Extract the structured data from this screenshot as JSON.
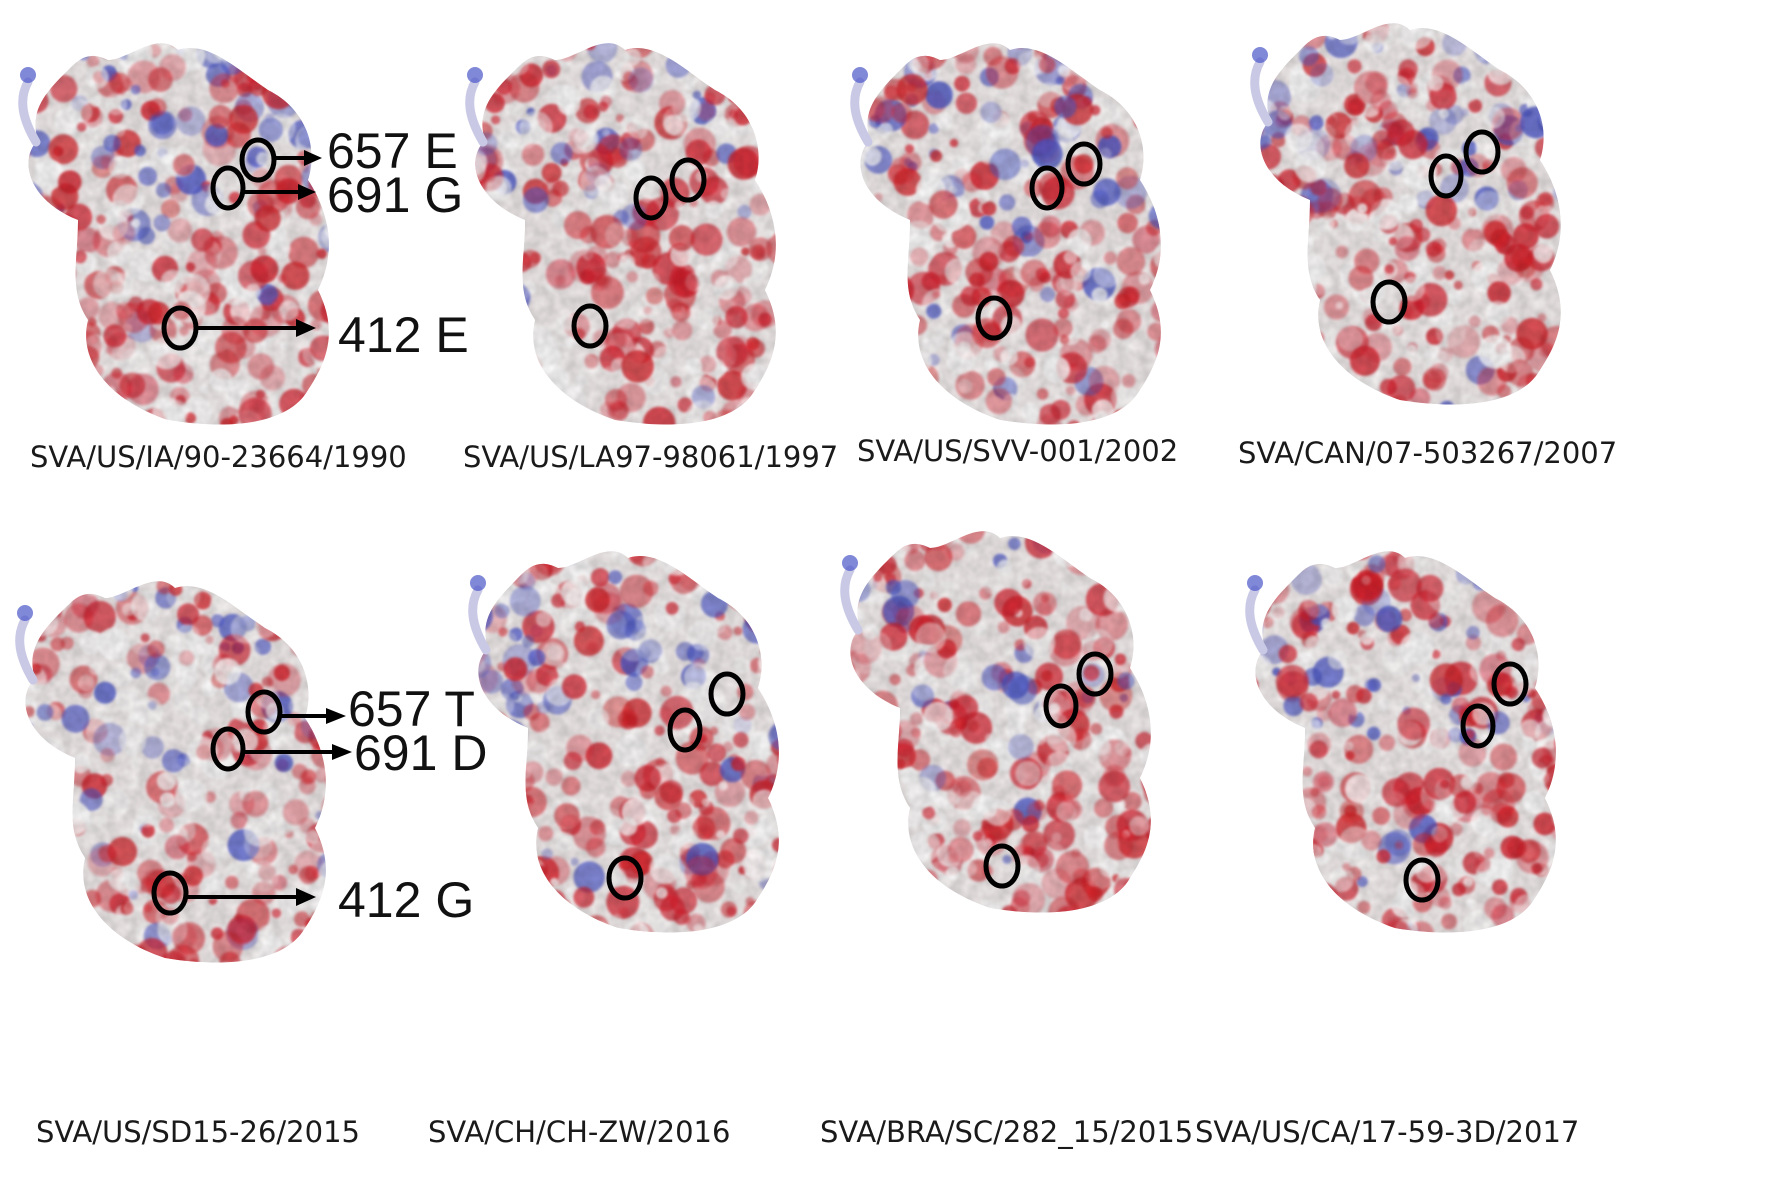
{
  "colors": {
    "negative": "#d51f2a",
    "positive": "#4a55c8",
    "neutral": "#f2ecec",
    "marker": "#000000"
  },
  "panels": [
    {
      "caption": "SVA/US/IA/90-23664/1990"
    },
    {
      "caption": "SVA/US/LA97-98061/1997"
    },
    {
      "caption": "SVA/US/SVV-001/2002"
    },
    {
      "caption": "SVA/CAN/07-503267/2007"
    },
    {
      "caption": "SVA/US/SD15-26/2015"
    },
    {
      "caption": "SVA/CH/CH-ZW/2016"
    },
    {
      "caption": "SVA/BRA/SC/282_15/2015"
    },
    {
      "caption": "SVA/US/CA/17-59-3D/2017"
    }
  ],
  "callouts": {
    "top": [
      "657 E",
      "691 G",
      "412 E"
    ],
    "bottom": [
      "657 T",
      "691 D",
      "412 G"
    ]
  }
}
